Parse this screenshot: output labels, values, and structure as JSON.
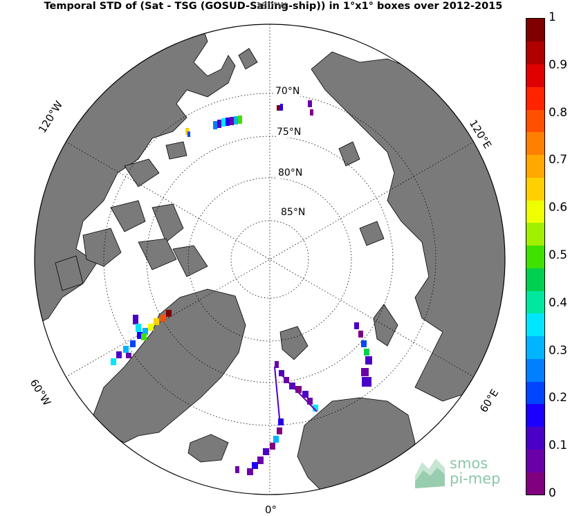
{
  "title": "Temporal STD of (Sat - TSG (GOSUD-Sailing-ship)) in 1°x1° boxes over 2012-2015",
  "meridian_labels": {
    "m180": "180°W",
    "m120w": "120°W",
    "m120e": "120°E",
    "m60w": "60°W",
    "m60e": "60°E",
    "m0": "0°"
  },
  "latitude_labels": {
    "l70": "70°N",
    "l75": "75°N",
    "l80": "80°N",
    "l85": "85°N"
  },
  "colorbar": {
    "ticks": [
      "1",
      "0.9",
      "0.8",
      "0.7",
      "0.6",
      "0.5",
      "0.4",
      "0.3",
      "0.2",
      "0.1",
      "0"
    ],
    "colors": [
      "#800080",
      "#6a00a8",
      "#4b00c8",
      "#1c00ff",
      "#0046ff",
      "#0080ff",
      "#00b4ff",
      "#00e6ff",
      "#00e8a0",
      "#00d050",
      "#40e000",
      "#a0f000",
      "#f0ff00",
      "#ffd000",
      "#ffa800",
      "#ff8000",
      "#ff5000",
      "#ff2400",
      "#e00000",
      "#b00000",
      "#800000"
    ]
  },
  "colors": {
    "land": "#7a7a7a",
    "ocean": "#ffffff",
    "grid": "#000000"
  },
  "logo": {
    "line1": "smos",
    "line2": "pi-mep"
  }
}
